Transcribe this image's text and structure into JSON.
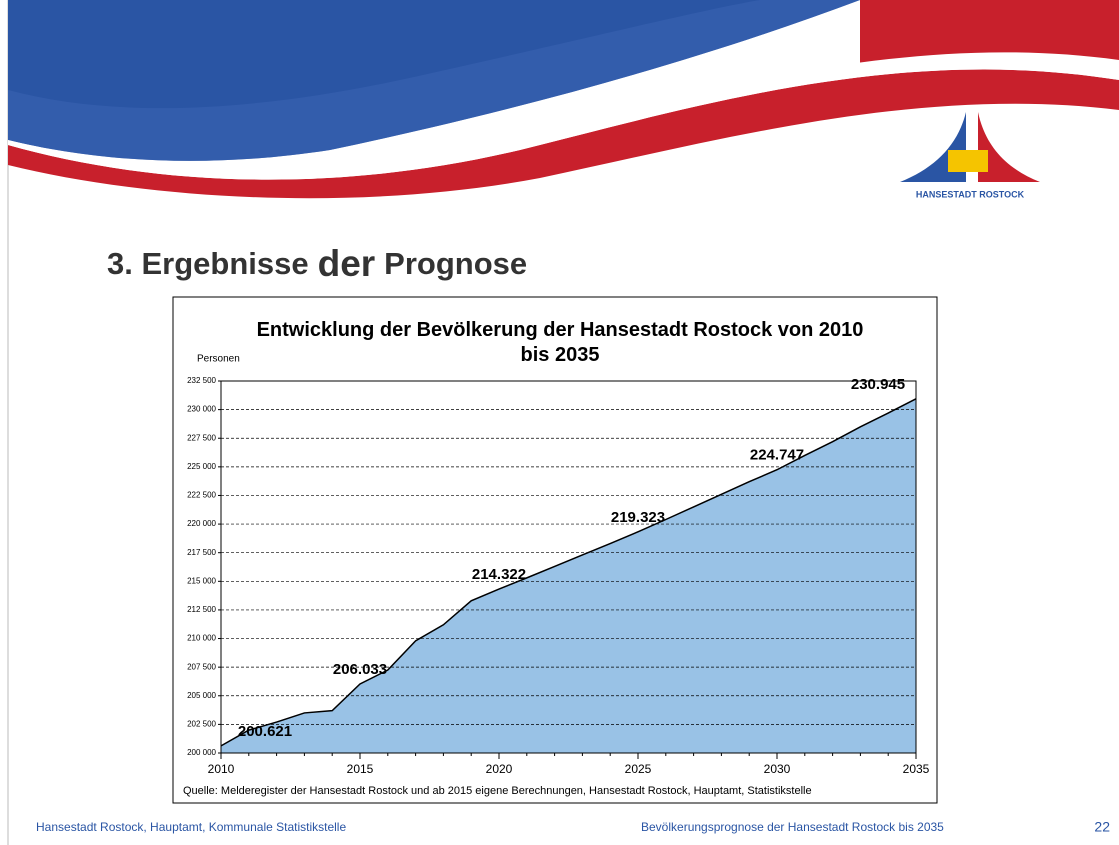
{
  "slide": {
    "title": [
      "3. Ergebnisse",
      "der",
      "Prognose"
    ],
    "logo_text": "HANSESTADT ROSTOCK",
    "footer": {
      "left": "Hansestadt Rostock, Hauptamt, Kommunale Statistikstelle",
      "center": "Bevölkerungsprognose der Hansestadt Rostock bis 2035",
      "page": "22"
    }
  },
  "chart_data": {
    "type": "area",
    "title": "Entwicklung der Bevölkerung der Hansestadt Rostock von 2010 bis 2035",
    "y_label": "Personen",
    "source": "Quelle: Melderegister der Hansestadt Rostock und ab 2015 eigene Berechnungen, Hansestadt Rostock, Hauptamt, Statistikstelle",
    "x": [
      2010,
      2011,
      2012,
      2013,
      2014,
      2015,
      2016,
      2017,
      2018,
      2019,
      2020,
      2021,
      2022,
      2023,
      2024,
      2025,
      2026,
      2027,
      2028,
      2029,
      2030,
      2031,
      2032,
      2033,
      2034,
      2035
    ],
    "values": [
      200621,
      202000,
      202700,
      203500,
      203700,
      206033,
      207250,
      209800,
      211200,
      213300,
      214322,
      215300,
      216300,
      217300,
      218300,
      219323,
      220400,
      221500,
      222600,
      223700,
      224747,
      226000,
      227200,
      228500,
      229700,
      230945
    ],
    "value_labels": [
      "200.621",
      null,
      null,
      null,
      null,
      "206.033",
      null,
      null,
      null,
      null,
      "214.322",
      null,
      null,
      null,
      null,
      "219.323",
      null,
      null,
      null,
      null,
      "224.747",
      null,
      null,
      null,
      null,
      "230.945"
    ],
    "color": "#99c2e6",
    "xlim": [
      2010,
      2035
    ],
    "xticks": [
      2010,
      2015,
      2020,
      2025,
      2030,
      2035
    ],
    "ylim": [
      200000,
      232500
    ],
    "yticks": [
      {
        "value": 200000,
        "label": "200 000"
      },
      {
        "value": 202500,
        "label": "202 500"
      },
      {
        "value": 205000,
        "label": "205 000"
      },
      {
        "value": 207500,
        "label": "207 500"
      },
      {
        "value": 210000,
        "label": "210 000"
      },
      {
        "value": 212500,
        "label": "212 500"
      },
      {
        "value": 215000,
        "label": "215 000"
      },
      {
        "value": 217500,
        "label": "217 500"
      },
      {
        "value": 220000,
        "label": "220 000"
      },
      {
        "value": 222500,
        "label": "222 500"
      },
      {
        "value": 225000,
        "label": "225 000"
      },
      {
        "value": 227500,
        "label": "227 500"
      },
      {
        "value": 230000,
        "label": "230 000"
      },
      {
        "value": 232500,
        "label": "232 500"
      }
    ],
    "grid": true
  }
}
